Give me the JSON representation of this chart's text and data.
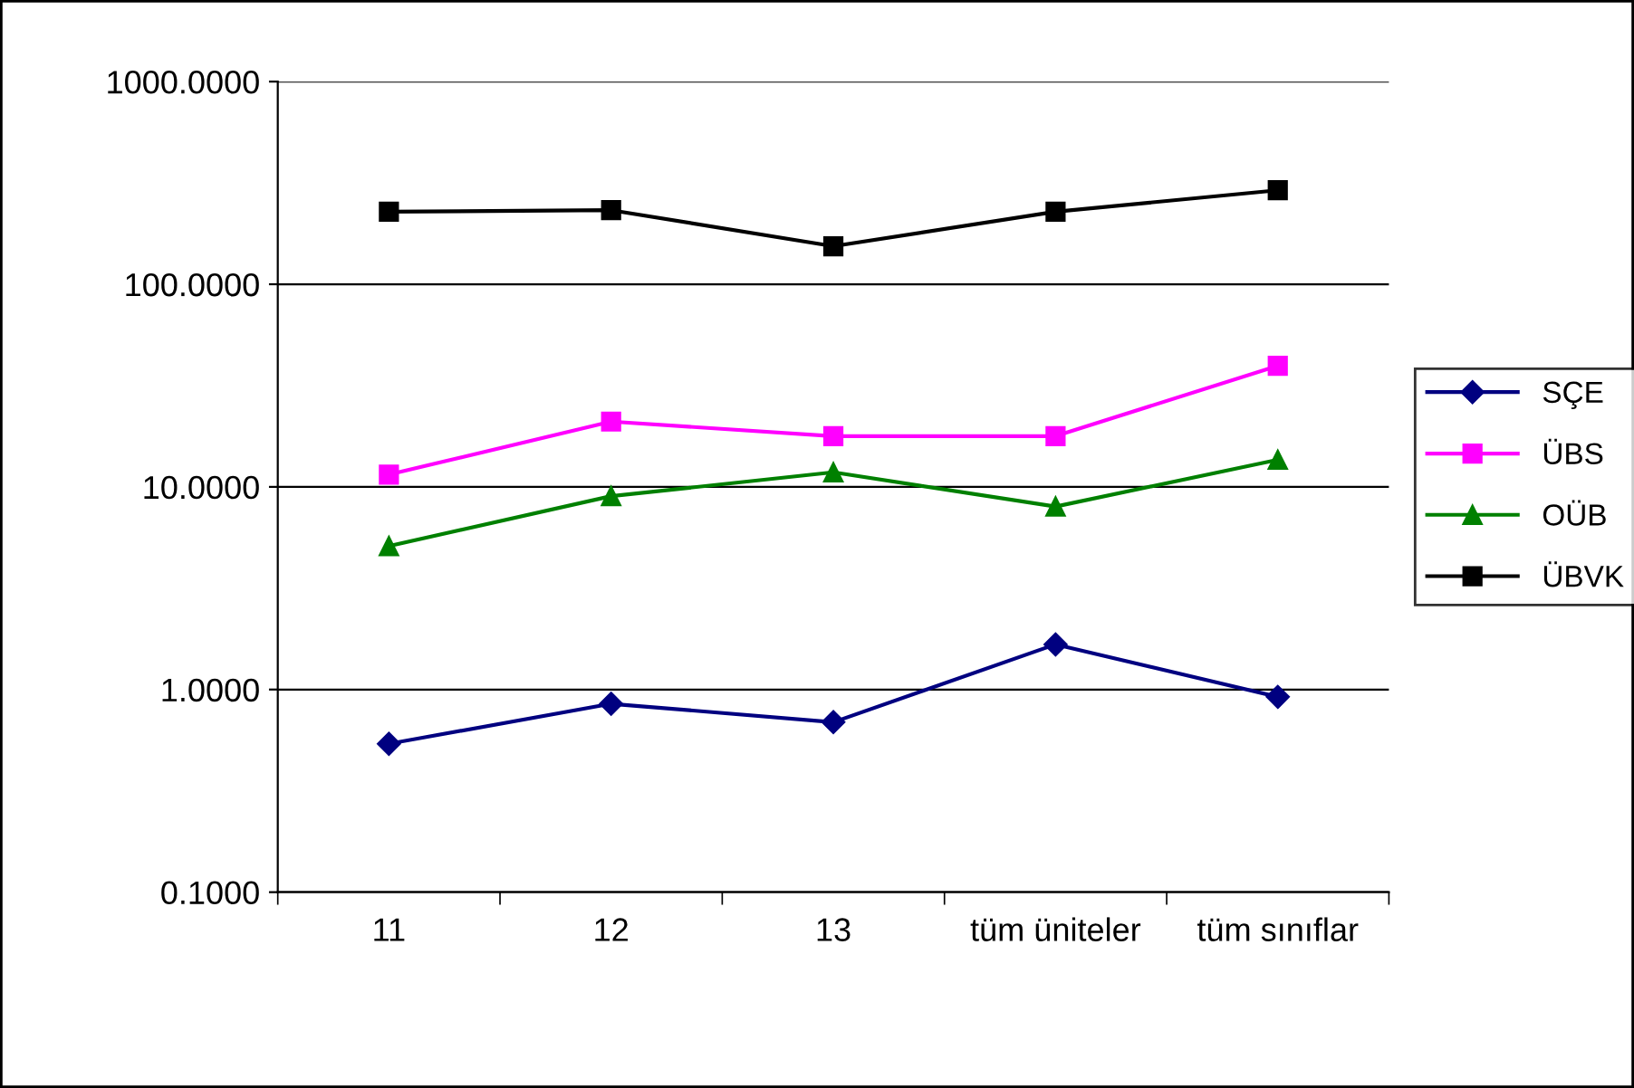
{
  "chart_data": {
    "type": "line",
    "log": "y",
    "categories": [
      "11",
      "12",
      "13",
      "tüm üniteler",
      "tüm sınıflar"
    ],
    "series": [
      {
        "name": "SÇE",
        "color": "#000080",
        "marker": "diamond",
        "values": [
          0.54,
          0.85,
          0.69,
          1.67,
          0.92
        ]
      },
      {
        "name": "ÜBS",
        "color": "#ff00ff",
        "marker": "square",
        "values": [
          11.5,
          21,
          17.8,
          17.8,
          39.6
        ]
      },
      {
        "name": "OÜB",
        "color": "#008000",
        "marker": "triangle",
        "values": [
          5.1,
          9.0,
          11.8,
          8.0,
          13.6
        ]
      },
      {
        "name": "ÜBVK",
        "color": "#000000",
        "marker": "square",
        "values": [
          228,
          232,
          154,
          228,
          291
        ]
      }
    ],
    "ylim": [
      0.1,
      1000
    ],
    "yticks": [
      {
        "value": 0.1,
        "label": "0.1000"
      },
      {
        "value": 1,
        "label": "1.0000"
      },
      {
        "value": 10,
        "label": "10.0000"
      },
      {
        "value": 100,
        "label": "100.0000"
      },
      {
        "value": 1000,
        "label": "1000.0000"
      }
    ],
    "grid": "y",
    "legend": "right",
    "line_style": "solid"
  }
}
